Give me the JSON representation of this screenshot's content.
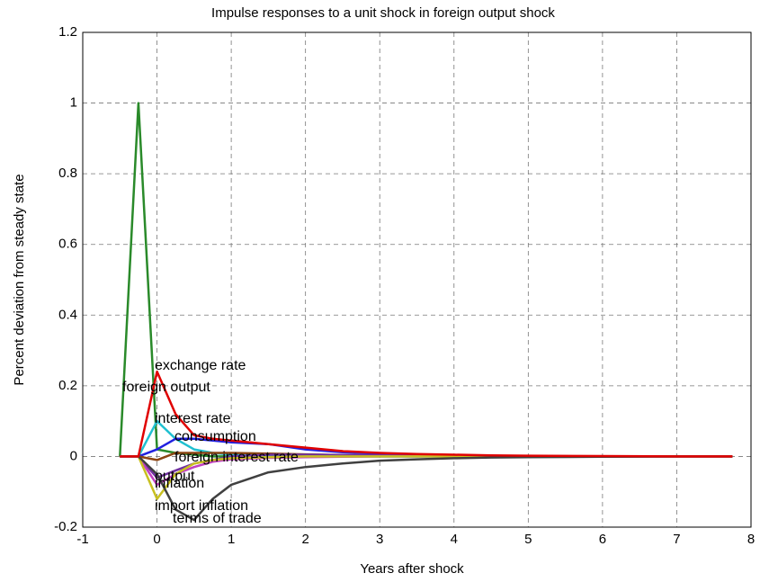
{
  "chart_data": {
    "type": "line",
    "title": "Impulse responses to a unit shock in foreign output  shock",
    "x_label": "Years after shock",
    "y_label": "Percent deviation from steady state",
    "x": [
      -0.5,
      -0.25,
      0,
      0.25,
      0.5,
      0.75,
      1,
      1.5,
      2,
      2.5,
      3,
      3.5,
      4,
      4.5,
      5,
      6,
      7,
      7.75
    ],
    "series": [
      {
        "name": "foreign output",
        "color": "#2a8a2a",
        "values": [
          0,
          1,
          0.02,
          0.01,
          0.005,
          0,
          0,
          0,
          0,
          0,
          0,
          0,
          0,
          0,
          0,
          0,
          0,
          0
        ]
      },
      {
        "name": "interest rate",
        "color": "#20c0d0",
        "values": [
          0,
          0,
          0.1,
          0.05,
          0.02,
          0.01,
          0.005,
          0.003,
          0.002,
          0.001,
          0,
          0,
          0,
          0,
          0,
          0,
          0,
          0
        ]
      },
      {
        "name": "consumption",
        "color": "#2020e0",
        "values": [
          0,
          0,
          0.02,
          0.05,
          0.05,
          0.045,
          0.04,
          0.035,
          0.02,
          0.012,
          0.008,
          0.005,
          0.003,
          0.002,
          0.001,
          0,
          0,
          0
        ]
      },
      {
        "name": "foreign interest rate",
        "color": "#8b4513",
        "values": [
          0,
          0,
          -0.01,
          0.01,
          0.01,
          0.01,
          0.01,
          0.008,
          0.006,
          0.004,
          0.003,
          0.002,
          0.001,
          0,
          0,
          0,
          0,
          0
        ]
      },
      {
        "name": "output",
        "color": "#7030a0",
        "values": [
          0,
          0,
          -0.06,
          -0.04,
          -0.02,
          -0.01,
          0,
          0.005,
          0.005,
          0.004,
          0.003,
          0.002,
          0.001,
          0,
          0,
          0,
          0,
          0
        ]
      },
      {
        "name": "inflation",
        "color": "#c040c0",
        "values": [
          0,
          0,
          -0.08,
          -0.05,
          -0.03,
          -0.015,
          -0.008,
          -0.004,
          -0.002,
          -0.001,
          0,
          0,
          0,
          0,
          0,
          0,
          0,
          0
        ]
      },
      {
        "name": "import inflation",
        "color": "#c8c020",
        "values": [
          0,
          0,
          -0.12,
          -0.05,
          -0.02,
          -0.01,
          -0.005,
          -0.002,
          0,
          0,
          0,
          0,
          0,
          0,
          0,
          0,
          0,
          0
        ]
      },
      {
        "name": "terms of trade",
        "color": "#404040",
        "values": [
          0,
          0,
          -0.05,
          -0.15,
          -0.18,
          -0.12,
          -0.08,
          -0.045,
          -0.03,
          -0.02,
          -0.012,
          -0.008,
          -0.005,
          -0.003,
          -0.002,
          -0.001,
          0,
          0
        ]
      },
      {
        "name": "exchange rate",
        "color": "#e00000",
        "values": [
          0,
          0,
          0.24,
          0.12,
          0.06,
          0.05,
          0.045,
          0.035,
          0.025,
          0.015,
          0.01,
          0.007,
          0.005,
          0.003,
          0.002,
          0.001,
          0,
          0
        ]
      }
    ],
    "xlim": [
      -1,
      8
    ],
    "xticks": [
      -1,
      0,
      1,
      2,
      3,
      4,
      5,
      6,
      7,
      8
    ],
    "ylim": [
      -0.2,
      1.2
    ],
    "yticks": [
      -0.2,
      0,
      0.2,
      0.4,
      0.6,
      0.8,
      1,
      1.2
    ],
    "grid": true
  }
}
